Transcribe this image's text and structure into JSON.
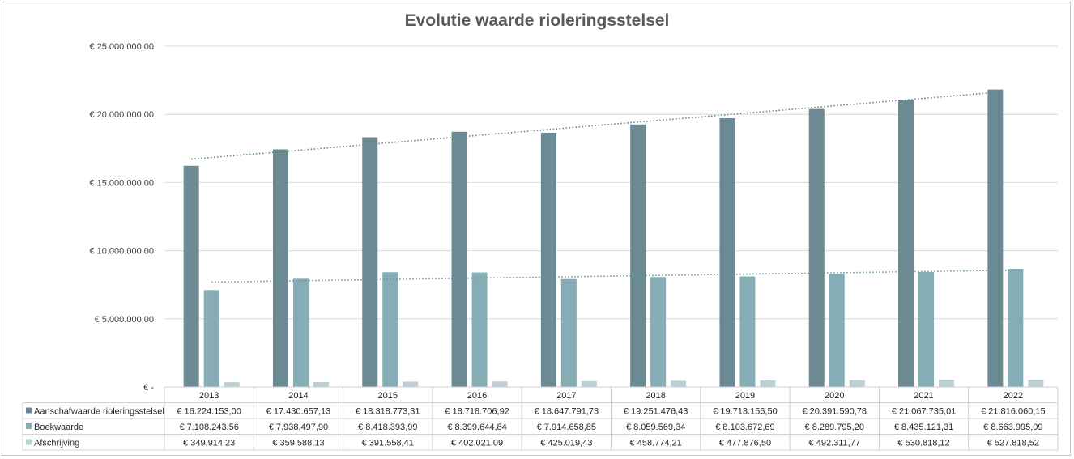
{
  "chart_data": {
    "type": "bar",
    "title": "Evolutie waarde rioleringsstelsel",
    "categories": [
      "2013",
      "2014",
      "2015",
      "2016",
      "2017",
      "2018",
      "2019",
      "2020",
      "2021",
      "2022"
    ],
    "ylim": [
      0,
      25000000
    ],
    "y_ticks": [
      0,
      5000000,
      10000000,
      15000000,
      20000000,
      25000000
    ],
    "y_tick_labels": [
      "€ -",
      "€ 5.000.000,00",
      "€ 10.000.000,00",
      "€ 15.000.000,00",
      "€ 20.000.000,00",
      "€ 25.000.000,00"
    ],
    "grid": true,
    "legend": "data table below chart",
    "trendlines": [
      "linear",
      "linear",
      "none"
    ],
    "series": [
      {
        "name": "Aanschafwaarde rioleringsstelsel",
        "color": "#6b8a94",
        "values": [
          16224153.0,
          17430657.13,
          18318773.31,
          18718706.92,
          18647791.73,
          19251476.43,
          19713156.5,
          20391590.78,
          21067735.01,
          21816060.15
        ],
        "labels": [
          "€ 16.224.153,00",
          "€ 17.430.657,13",
          "€ 18.318.773,31",
          "€ 18.718.706,92",
          "€ 18.647.791,73",
          "€ 19.251.476,43",
          "€ 19.713.156,50",
          "€ 20.391.590,78",
          "€ 21.067.735,01",
          "€ 21.816.060,15"
        ]
      },
      {
        "name": "Boekwaarde",
        "color": "#86adb6",
        "values": [
          7108243.56,
          7938497.9,
          8418393.99,
          8399644.84,
          7914658.85,
          8059569.34,
          8103672.69,
          8289795.2,
          8435121.31,
          8663995.09
        ],
        "labels": [
          "€ 7.108.243,56",
          "€ 7.938.497,90",
          "€ 8.418.393,99",
          "€ 8.399.644,84",
          "€ 7.914.658,85",
          "€ 8.059.569,34",
          "€ 8.103.672,69",
          "€ 8.289.795,20",
          "€ 8.435.121,31",
          "€ 8.663.995,09"
        ]
      },
      {
        "name": "Afschrijving",
        "color": "#bccfd4",
        "values": [
          349914.23,
          359588.13,
          391558.41,
          402021.09,
          425019.43,
          458774.21,
          477876.5,
          492311.77,
          530818.12,
          527818.52
        ],
        "labels": [
          "€ 349.914,23",
          "€ 359.588,13",
          "€ 391.558,41",
          "€ 402.021,09",
          "€ 425.019,43",
          "€ 458.774,21",
          "€ 477.876,50",
          "€ 492.311,77",
          "€ 530.818,12",
          "€ 527.818,52"
        ]
      }
    ]
  }
}
